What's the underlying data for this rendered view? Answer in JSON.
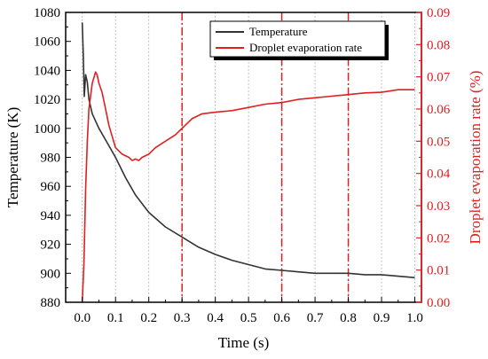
{
  "chart_data": {
    "type": "line",
    "xlabel": "Time (s)",
    "ylabel_left": "Temperature (K)",
    "ylabel_right": "Droplet evaporation rate (%)",
    "xlim": [
      -0.05,
      1.02
    ],
    "ylim_left": [
      880,
      1080
    ],
    "ylim_right": [
      0.0,
      0.09
    ],
    "x_ticks": [
      0.0,
      0.1,
      0.2,
      0.3,
      0.4,
      0.5,
      0.6,
      0.7,
      0.8,
      0.9,
      1.0
    ],
    "x_tick_labels": [
      "0.0",
      "0.1",
      "0.2",
      "0.3",
      "0.4",
      "0.5",
      "0.6",
      "0.7",
      "0.8",
      "0.9",
      "1.0"
    ],
    "y_left_ticks": [
      880,
      900,
      920,
      940,
      960,
      980,
      1000,
      1020,
      1040,
      1060,
      1080
    ],
    "y_left_tick_labels": [
      "880",
      "900",
      "920",
      "940",
      "960",
      "980",
      "1000",
      "1020",
      "1040",
      "1060",
      "1080"
    ],
    "y_right_ticks": [
      0.0,
      0.01,
      0.02,
      0.03,
      0.04,
      0.05,
      0.06,
      0.07,
      0.08,
      0.09
    ],
    "y_right_tick_labels": [
      "0.00",
      "0.01",
      "0.02",
      "0.03",
      "0.04",
      "0.05",
      "0.06",
      "0.07",
      "0.08",
      "0.09"
    ],
    "grid": "vertical dotted at x ticks",
    "legend_position": "top-right",
    "reference_lines": {
      "x": [
        0.3,
        0.6,
        0.8
      ],
      "style": "dash-dot",
      "color": "#e02020"
    },
    "series": [
      {
        "name": "Temperature",
        "axis": "left",
        "color": "#333333",
        "x": [
          0.0,
          0.003,
          0.006,
          0.01,
          0.015,
          0.02,
          0.03,
          0.05,
          0.07,
          0.1,
          0.13,
          0.16,
          0.2,
          0.25,
          0.3,
          0.35,
          0.4,
          0.45,
          0.5,
          0.55,
          0.6,
          0.65,
          0.7,
          0.75,
          0.8,
          0.85,
          0.9,
          0.95,
          1.0
        ],
        "y": [
          1073,
          1050,
          1022,
          1037,
          1032,
          1020,
          1010,
          1000,
          992,
          980,
          966,
          954,
          942,
          932,
          925,
          918,
          913,
          909,
          906,
          903,
          902,
          901,
          900,
          900,
          900,
          899,
          899,
          898,
          897
        ]
      },
      {
        "name": "Droplet evaporation rate",
        "axis": "right",
        "color": "#e02020",
        "x": [
          0.0,
          0.005,
          0.01,
          0.015,
          0.02,
          0.03,
          0.04,
          0.045,
          0.05,
          0.06,
          0.07,
          0.08,
          0.1,
          0.12,
          0.14,
          0.15,
          0.16,
          0.17,
          0.18,
          0.2,
          0.22,
          0.25,
          0.28,
          0.3,
          0.33,
          0.36,
          0.4,
          0.45,
          0.5,
          0.55,
          0.6,
          0.65,
          0.7,
          0.75,
          0.8,
          0.85,
          0.9,
          0.95,
          1.0
        ],
        "y": [
          0.0,
          0.012,
          0.035,
          0.05,
          0.06,
          0.068,
          0.0715,
          0.0705,
          0.068,
          0.065,
          0.06,
          0.055,
          0.048,
          0.046,
          0.045,
          0.044,
          0.0445,
          0.044,
          0.045,
          0.046,
          0.048,
          0.05,
          0.052,
          0.054,
          0.057,
          0.0585,
          0.059,
          0.0595,
          0.0605,
          0.0615,
          0.062,
          0.063,
          0.0635,
          0.064,
          0.0645,
          0.065,
          0.0652,
          0.066,
          0.066
        ]
      }
    ]
  }
}
